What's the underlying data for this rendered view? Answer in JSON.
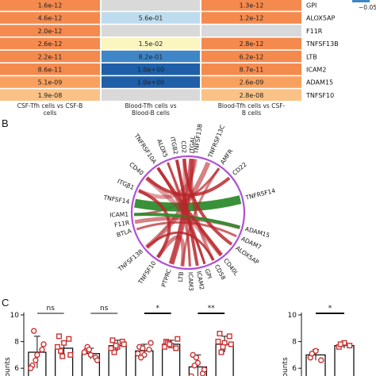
{
  "colors": {
    "orange_dark": "#f58a4e",
    "orange_mid": "#f8a15e",
    "orange_light": "#fac286",
    "blue_light": "#bfdcef",
    "blue_mid": "#3f86c7",
    "blue_dark": "#1f5fa8",
    "pale_yellow": "#fbf5c0",
    "grey": "#d9d9d9",
    "chord_red": "#b8262b",
    "chord_green": "#2e8b2e",
    "ring_purple": "#b04fd6",
    "marker_red": "#cc3333"
  },
  "panel_a": {
    "legend_fragment": "−0.05",
    "genes": [
      "GPI",
      "ALOX5AP",
      "F11R",
      "TNFSF13B",
      "LTB",
      "ICAM2",
      "ADAM15",
      "TNFSF10"
    ],
    "columns": [
      "CSF-Tfh cells vs CSF-B cells",
      "Blood-Tfh cells vs Blood-B cells",
      "Blood-Tfh cells vs CSF-B cells"
    ],
    "column_line1": [
      "CSF-Tfh cells vs CSF-B",
      "Blood-Tfh cells vs",
      "Blood-Tfh cells vs CSF-"
    ],
    "column_line2": [
      "cells",
      "Blood-B cells",
      "B cells"
    ],
    "rows": [
      {
        "cells": [
          "1.6e-12",
          "",
          "1.3e-12"
        ],
        "colors": [
          "orange_dark",
          "grey",
          "orange_dark"
        ]
      },
      {
        "cells": [
          "4.6e-12",
          "5.6e-01",
          "1.2e-12"
        ],
        "colors": [
          "orange_dark",
          "blue_light",
          "orange_dark"
        ]
      },
      {
        "cells": [
          "2.0e-12",
          "",
          ""
        ],
        "colors": [
          "orange_dark",
          "grey",
          "grey"
        ]
      },
      {
        "cells": [
          "2.6e-12",
          "1.5e-02",
          "2.8e-12"
        ],
        "colors": [
          "orange_dark",
          "pale_yellow",
          "orange_dark"
        ]
      },
      {
        "cells": [
          "2.2e-11",
          "8.2e-01",
          "6.2e-12"
        ],
        "colors": [
          "orange_dark",
          "blue_mid",
          "orange_dark"
        ]
      },
      {
        "cells": [
          "8.6e-11",
          "1.0e+00",
          "8.7e-11"
        ],
        "colors": [
          "orange_dark",
          "blue_dark",
          "orange_dark"
        ]
      },
      {
        "cells": [
          "5.1e-09",
          "1.0e+00",
          "2.6e-09"
        ],
        "colors": [
          "orange_mid",
          "blue_dark",
          "orange_mid"
        ]
      },
      {
        "cells": [
          "1.9e-08",
          "",
          "2.8e-08"
        ],
        "colors": [
          "orange_light",
          "grey",
          "orange_light"
        ]
      }
    ]
  },
  "panel_b": {
    "letter": "B",
    "labels": [
      "TNFSF13B",
      "TNFRSF13C",
      "AMFR",
      "CD22",
      "TNFRSF14",
      "ADAM15",
      "ADAM7",
      "ALOX5AP",
      "CD40L",
      "CD58",
      "GPI",
      "ICAM2",
      "ICAM3",
      "LTB",
      "PTPRC",
      "TNFSF10",
      "TNFSF13B",
      "BTLA",
      "F11R",
      "ICAM1",
      "TNFSF14",
      "ITGβ1",
      "CD40",
      "TNFRSF10A",
      "ALOX5",
      "ITGB2",
      "CD2",
      "ITGAL"
    ]
  },
  "chart_data": [
    {
      "type": "scatter",
      "panel": "C-left",
      "ylabel": "d counts",
      "ylim": [
        5,
        10
      ],
      "yticks": [
        6,
        8,
        10
      ],
      "significance": [
        "ns",
        "ns",
        "*",
        "**"
      ],
      "series": [
        {
          "values": [
            7.2,
            7.5,
            7.1,
            7.7,
            7.3,
            7.8,
            6.1,
            7.8
          ],
          "errors": [
            1.2,
            0.5,
            0.4,
            0.4,
            0.5,
            0.3,
            0.9,
            0.6
          ]
        }
      ],
      "points": [
        [
          6.2,
          7.0,
          7.4,
          8.8,
          6.6,
          7.8,
          6.0
        ],
        [
          8.4,
          7.9,
          8.2,
          7.3,
          6.9,
          7.0,
          7.6
        ],
        [
          7.3,
          7.0,
          6.8,
          7.6,
          7.4,
          6.6,
          7.2
        ],
        [
          8.1,
          7.6,
          8.0,
          7.2,
          7.7,
          7.8,
          7.5
        ],
        [
          7.6,
          7.0,
          7.4,
          6.8,
          7.5,
          7.9,
          7.1
        ],
        [
          8.0,
          7.7,
          7.5,
          7.9,
          7.8,
          8.2,
          7.6
        ],
        [
          7.0,
          6.4,
          5.6,
          6.2,
          6.8,
          5.9,
          5.4
        ],
        [
          8.6,
          7.9,
          8.4,
          7.2,
          7.6,
          7.8,
          8.0
        ]
      ]
    },
    {
      "type": "scatter",
      "panel": "C-right",
      "ylabel": "d counts",
      "ylim": [
        5,
        10
      ],
      "yticks": [
        6,
        8,
        10
      ],
      "significance": [
        "*"
      ],
      "series": [
        {
          "values": [
            7.0,
            7.7
          ],
          "errors": [
            0.4,
            0.2
          ]
        }
      ],
      "points": [
        [
          6.8,
          7.3,
          6.6,
          7.1
        ],
        [
          7.6,
          7.9,
          7.7,
          7.8
        ]
      ]
    }
  ],
  "panel_c": {
    "letter": "C"
  }
}
